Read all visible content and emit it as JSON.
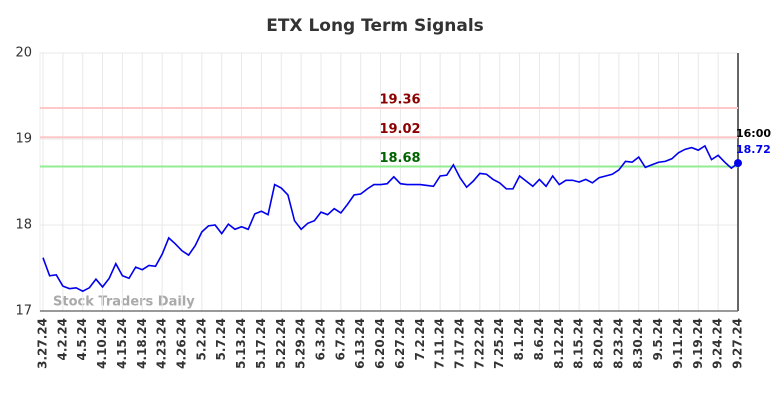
{
  "chart_data": {
    "type": "line",
    "title": "ETX Long Term Signals",
    "watermark": "Stock Traders Daily",
    "time_label": "16:00",
    "categories": [
      "3.27.24",
      null,
      null,
      "4.2.24",
      null,
      null,
      "4.5.24",
      null,
      null,
      "4.10.24",
      null,
      null,
      "4.15.24",
      null,
      null,
      "4.18.24",
      null,
      null,
      "4.23.24",
      null,
      null,
      "4.26.24",
      null,
      null,
      "5.2.24",
      null,
      null,
      "5.7.24",
      null,
      null,
      "5.13.24",
      null,
      null,
      "5.17.24",
      null,
      null,
      "5.22.24",
      null,
      null,
      "5.29.24",
      null,
      null,
      "6.3.24",
      null,
      null,
      "6.7.24",
      null,
      null,
      "6.13.24",
      null,
      null,
      "6.20.24",
      null,
      null,
      "6.27.24",
      null,
      null,
      "7.2.24",
      null,
      null,
      "7.11.24",
      null,
      null,
      "7.17.24",
      null,
      null,
      "7.22.24",
      null,
      null,
      "7.25.24",
      null,
      null,
      "8.1.24",
      null,
      null,
      "8.6.24",
      null,
      null,
      "8.12.24",
      null,
      null,
      "8.15.24",
      null,
      null,
      "8.20.24",
      null,
      null,
      "8.23.24",
      null,
      null,
      "8.30.24",
      null,
      null,
      "9.5.24",
      null,
      null,
      "9.11.24",
      null,
      null,
      "9.19.24",
      null,
      null,
      "9.24.24",
      null,
      null,
      "9.27.24"
    ],
    "series": [
      {
        "color": "#0000ee",
        "values": [
          17.62,
          17.41,
          17.42,
          17.29,
          17.26,
          17.27,
          17.23,
          17.27,
          17.37,
          17.28,
          17.38,
          17.55,
          17.41,
          17.38,
          17.51,
          17.48,
          17.53,
          17.52,
          17.66,
          17.85,
          17.78,
          17.7,
          17.65,
          17.76,
          17.92,
          17.99,
          18.0,
          17.9,
          18.01,
          17.95,
          17.98,
          17.95,
          18.13,
          18.16,
          18.12,
          18.47,
          18.43,
          18.35,
          18.05,
          17.95,
          18.02,
          18.05,
          18.15,
          18.12,
          18.19,
          18.14,
          18.24,
          18.35,
          18.36,
          18.42,
          18.47,
          18.47,
          18.48,
          18.56,
          18.48,
          18.47,
          18.47,
          18.47,
          18.46,
          18.45,
          18.57,
          18.58,
          18.7,
          18.55,
          18.44,
          18.51,
          18.6,
          18.59,
          18.53,
          18.49,
          18.42,
          18.42,
          18.57,
          18.51,
          18.45,
          18.53,
          18.45,
          18.57,
          18.47,
          18.52,
          18.52,
          18.5,
          18.53,
          18.49,
          18.55,
          18.57,
          18.59,
          18.64,
          18.74,
          18.73,
          18.79,
          18.67,
          18.7,
          18.73,
          18.74,
          18.77,
          18.84,
          18.88,
          18.9,
          18.87,
          18.92,
          18.76,
          18.81,
          18.73,
          18.66,
          18.72
        ]
      }
    ],
    "hlines": [
      {
        "value": 19.36,
        "color": "#ffc8c8",
        "label_color": "#8b0000"
      },
      {
        "value": 19.02,
        "color": "#ffc8c8",
        "label_color": "#8b0000"
      },
      {
        "value": 18.68,
        "color": "#90ee90",
        "label_color": "#006400"
      }
    ],
    "ylim": [
      17,
      20
    ],
    "yticks": [
      17,
      18,
      19,
      20
    ],
    "grid": true
  }
}
